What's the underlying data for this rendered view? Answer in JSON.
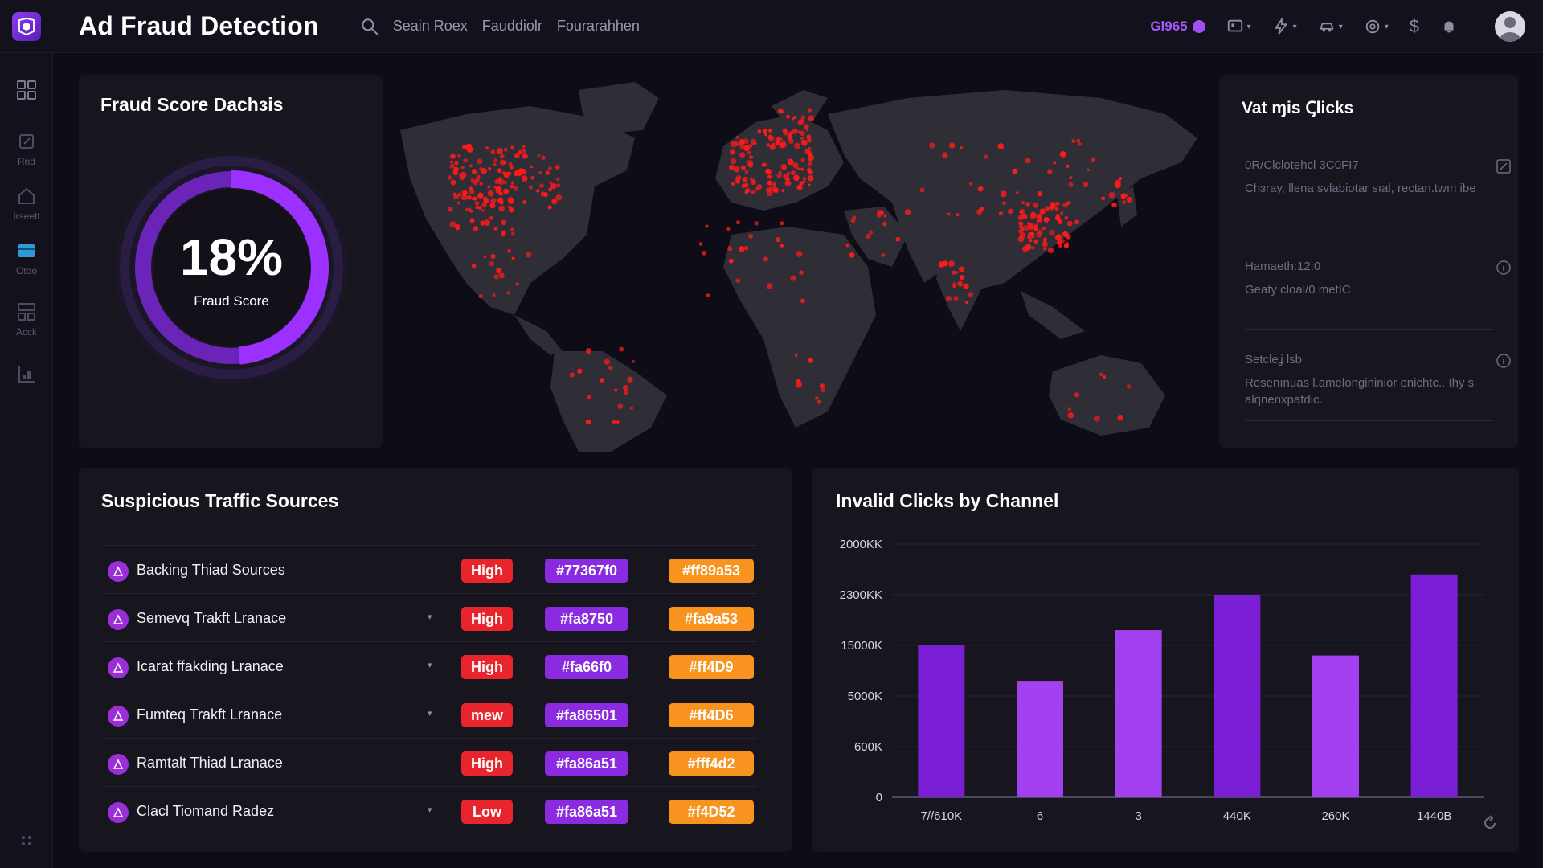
{
  "app": {
    "title": "Ad Fraud Detection",
    "nav": [
      "Seain Roex",
      "Fauddiolr",
      "Fourarahhen"
    ],
    "badge": "Gl965",
    "dollar": "$"
  },
  "sidebar": {
    "items": [
      {
        "label": "",
        "icon": "grid-icon"
      },
      {
        "label": "Rnd",
        "icon": "edit-icon"
      },
      {
        "label": "Irseett",
        "icon": "home-icon"
      },
      {
        "label": "Otoo",
        "icon": "card-icon"
      },
      {
        "label": "Acck",
        "icon": "layout-icon"
      },
      {
        "label": "",
        "icon": "chart-icon"
      }
    ]
  },
  "gauge": {
    "title": "Fraud Score Dachɜis",
    "value": "18%",
    "label": "Fraud Score",
    "percent": 18,
    "color": "#9b30ff"
  },
  "right_panel": {
    "title": "Vat ɱis Ꞔlicks",
    "items": [
      {
        "head": "0R/Clclotehcl 3C0FI7",
        "desc": "Chɜray, llena svlabiotar sıal, rectan.twın ibe",
        "icon": "edit-icon"
      },
      {
        "head": "Hamaeth:12:0",
        "desc": "Geaty cloal/0 metIC",
        "icon": "info-icon"
      },
      {
        "head": "Setcleʝ lsb",
        "desc": "Resenınuas l.amelongininior enichtc.. Ihy s alqnenxpatdic.",
        "icon": "info-icon"
      }
    ]
  },
  "traffic": {
    "title": "Suspicious Traffic Sources",
    "rows": [
      {
        "name": "Backing Thiad Sources",
        "caret": false,
        "risk": "High",
        "c1": "#77367f0",
        "c2": "#ff89a53"
      },
      {
        "name": "Semevq Trakft Lranace",
        "caret": true,
        "risk": "High",
        "c1": "#fa8750",
        "c2": "#fa9a53"
      },
      {
        "name": "Icarat ffakding Lranace",
        "caret": true,
        "risk": "High",
        "c1": "#fa66f0",
        "c2": "#ff4D9"
      },
      {
        "name": "Fumteq Trakft Lranace",
        "caret": true,
        "risk": "mew",
        "c1": "#fa86501",
        "c2": "#ff4D6"
      },
      {
        "name": "Ramtalt Thiad Lranace",
        "caret": false,
        "risk": "High",
        "c1": "#fa86a51",
        "c2": "#fff4d2"
      },
      {
        "name": "Clacl Tiomand Radez",
        "caret": true,
        "risk": "Low",
        "c1": "#fa86a51",
        "c2": "#f4D52"
      }
    ]
  },
  "chart_data": {
    "type": "bar",
    "title": "Invalid Clicks by Channel",
    "categories": [
      "7//610K",
      "6",
      "3",
      "440K",
      "260K",
      "1440B"
    ],
    "yticks": [
      "0",
      "600K",
      "5000K",
      "15000K",
      "2300KK",
      "2000KK"
    ],
    "values": [
      3.0,
      2.3,
      3.3,
      4.0,
      2.8,
      4.4
    ],
    "colors": [
      "#7b1fd6",
      "#a340f0",
      "#a340f0",
      "#7b1fd6",
      "#a340f0",
      "#7b1fd6"
    ],
    "ymax": 5
  },
  "map": {
    "dot_color": "#ff1a1a",
    "land_color": "#2f2e36"
  }
}
